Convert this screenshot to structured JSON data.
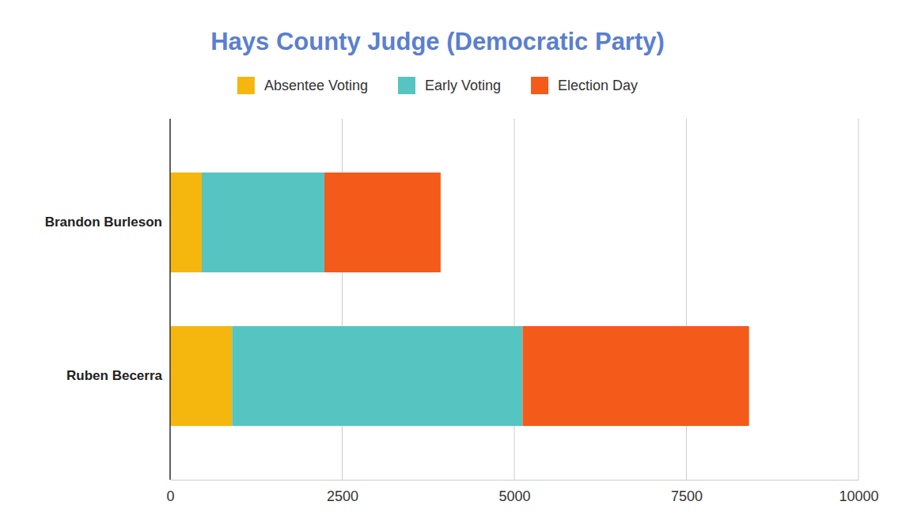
{
  "chart_data": {
    "type": "bar",
    "title": "Hays County Judge (Democratic Party)",
    "orientation": "horizontal",
    "stacked": true,
    "grid": true,
    "legend": "top",
    "categories": [
      "Brandon Burleson",
      "Ruben Becerra"
    ],
    "series": [
      {
        "name": "Absentee Voting",
        "color": "#f5b60e",
        "values": [
          460,
          900
        ]
      },
      {
        "name": "Early Voting",
        "color": "#56c5c2",
        "values": [
          1780,
          4220
        ]
      },
      {
        "name": "Election Day",
        "color": "#f45a1a",
        "values": [
          1690,
          3290
        ]
      }
    ],
    "xlim": [
      0,
      10000
    ],
    "xticks": [
      0,
      2500,
      5000,
      7500,
      10000
    ]
  }
}
